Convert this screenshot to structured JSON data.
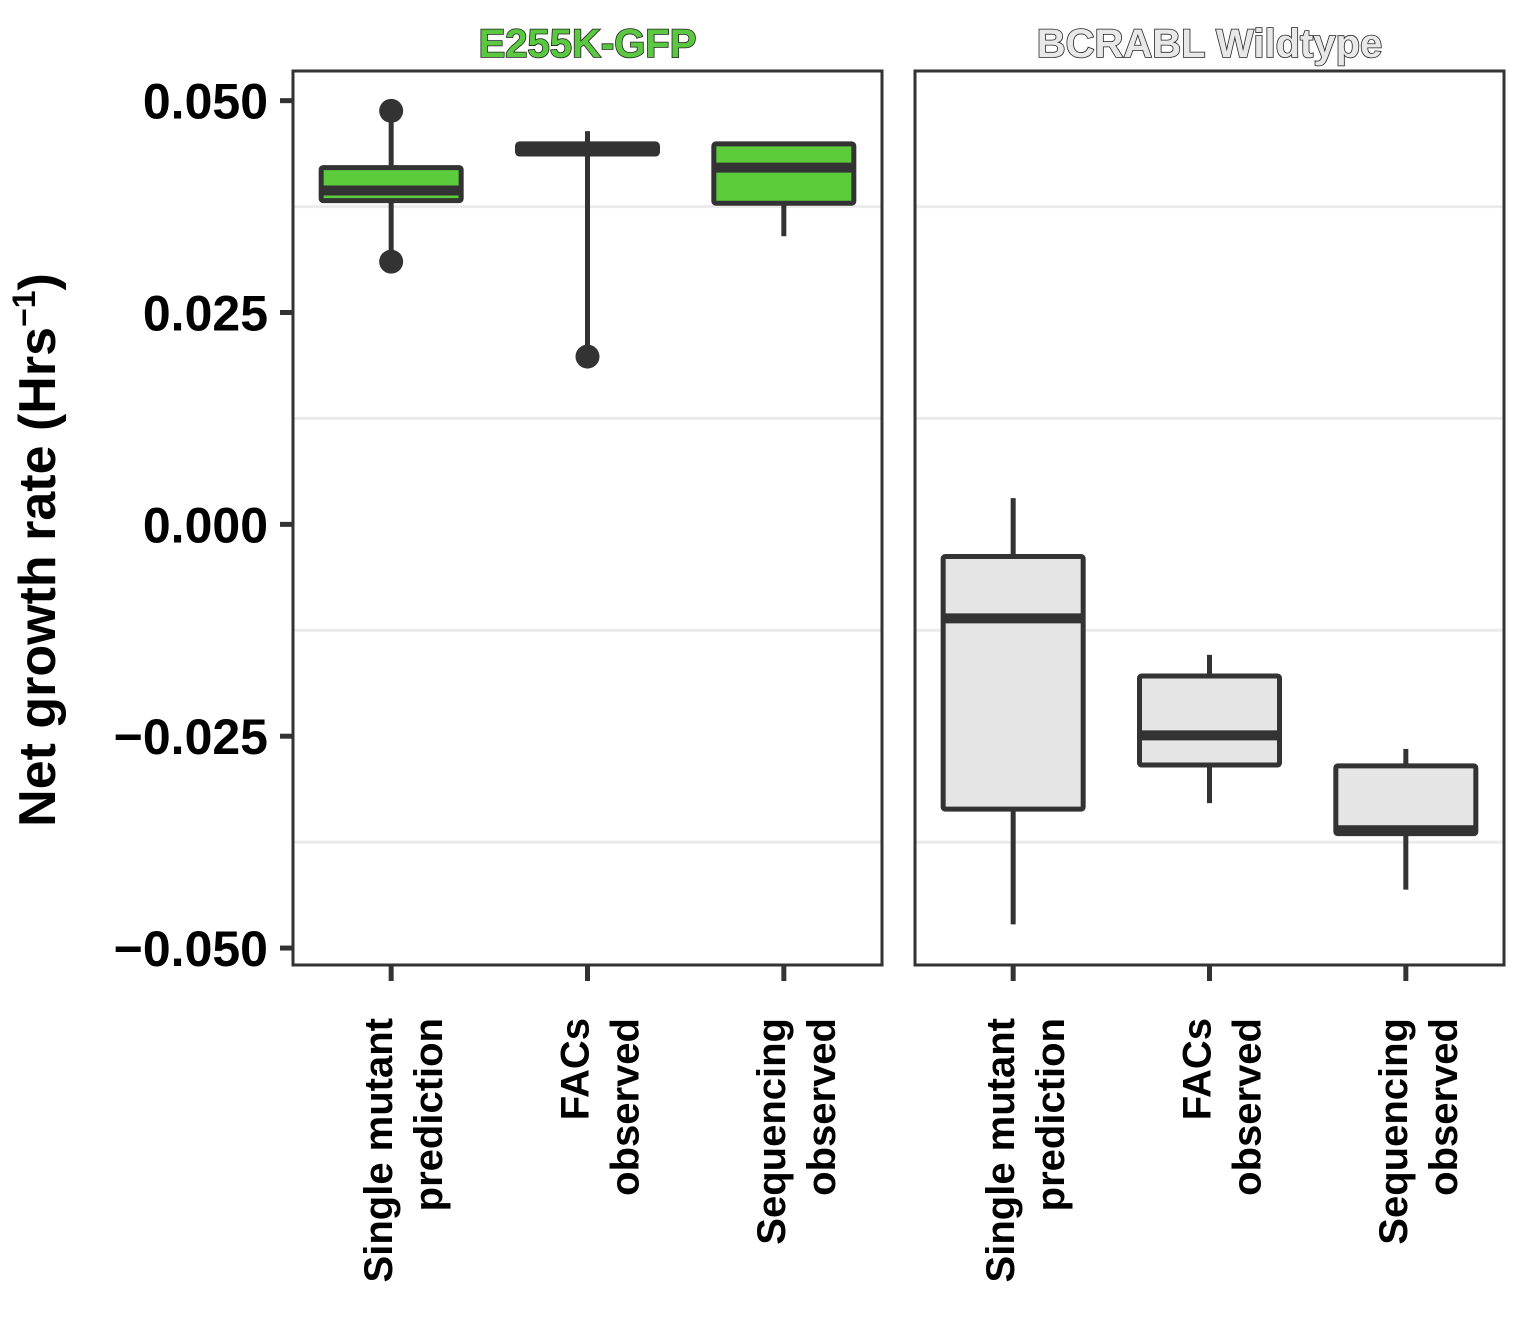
{
  "chart_data": {
    "type": "boxplot",
    "ylabel": "Net growth rate (Hrs",
    "ylabel_sup": "−1",
    "ylabel_end": ")",
    "ylim": [
      -0.052,
      0.0535
    ],
    "yticks": [
      0.05,
      0.025,
      0.0,
      -0.025,
      -0.05
    ],
    "ytick_labels": [
      "0.050",
      "0.025",
      "0.000",
      "−0.025",
      "−0.050"
    ],
    "categories": [
      [
        "Single mutant",
        "prediction"
      ],
      [
        "FACs",
        "observed"
      ],
      [
        "Sequencing",
        "observed"
      ]
    ],
    "panels": [
      {
        "title": "E255K-GFP",
        "title_color": "#5ac840",
        "fill": "#5ccc3c",
        "boxes": [
          {
            "lower": 0.0323,
            "q1": 0.0382,
            "median": 0.0394,
            "q3": 0.0421,
            "upper": 0.0488,
            "outliers": [
              0.0488,
              0.031
            ]
          },
          {
            "lower": 0.0207,
            "q1": 0.0437,
            "median": 0.0441,
            "q3": 0.0449,
            "upper": 0.0464,
            "outliers": [
              0.0198
            ]
          },
          {
            "lower": 0.034,
            "q1": 0.0379,
            "median": 0.0421,
            "q3": 0.0449,
            "upper": 0.0449,
            "outliers": []
          }
        ]
      },
      {
        "title": "BCRABL Wildtype",
        "title_color": "#e8e8e8",
        "fill": "#e5e5e5",
        "boxes": [
          {
            "lower": -0.0472,
            "q1": -0.0336,
            "median": -0.0111,
            "q3": -0.0038,
            "upper": 0.0031,
            "outliers": []
          },
          {
            "lower": -0.0329,
            "q1": -0.0284,
            "median": -0.0249,
            "q3": -0.0179,
            "upper": -0.0154,
            "outliers": []
          },
          {
            "lower": -0.0431,
            "q1": -0.0365,
            "median": -0.0361,
            "q3": -0.0285,
            "upper": -0.0265,
            "outliers": []
          }
        ]
      }
    ],
    "grid": true
  }
}
